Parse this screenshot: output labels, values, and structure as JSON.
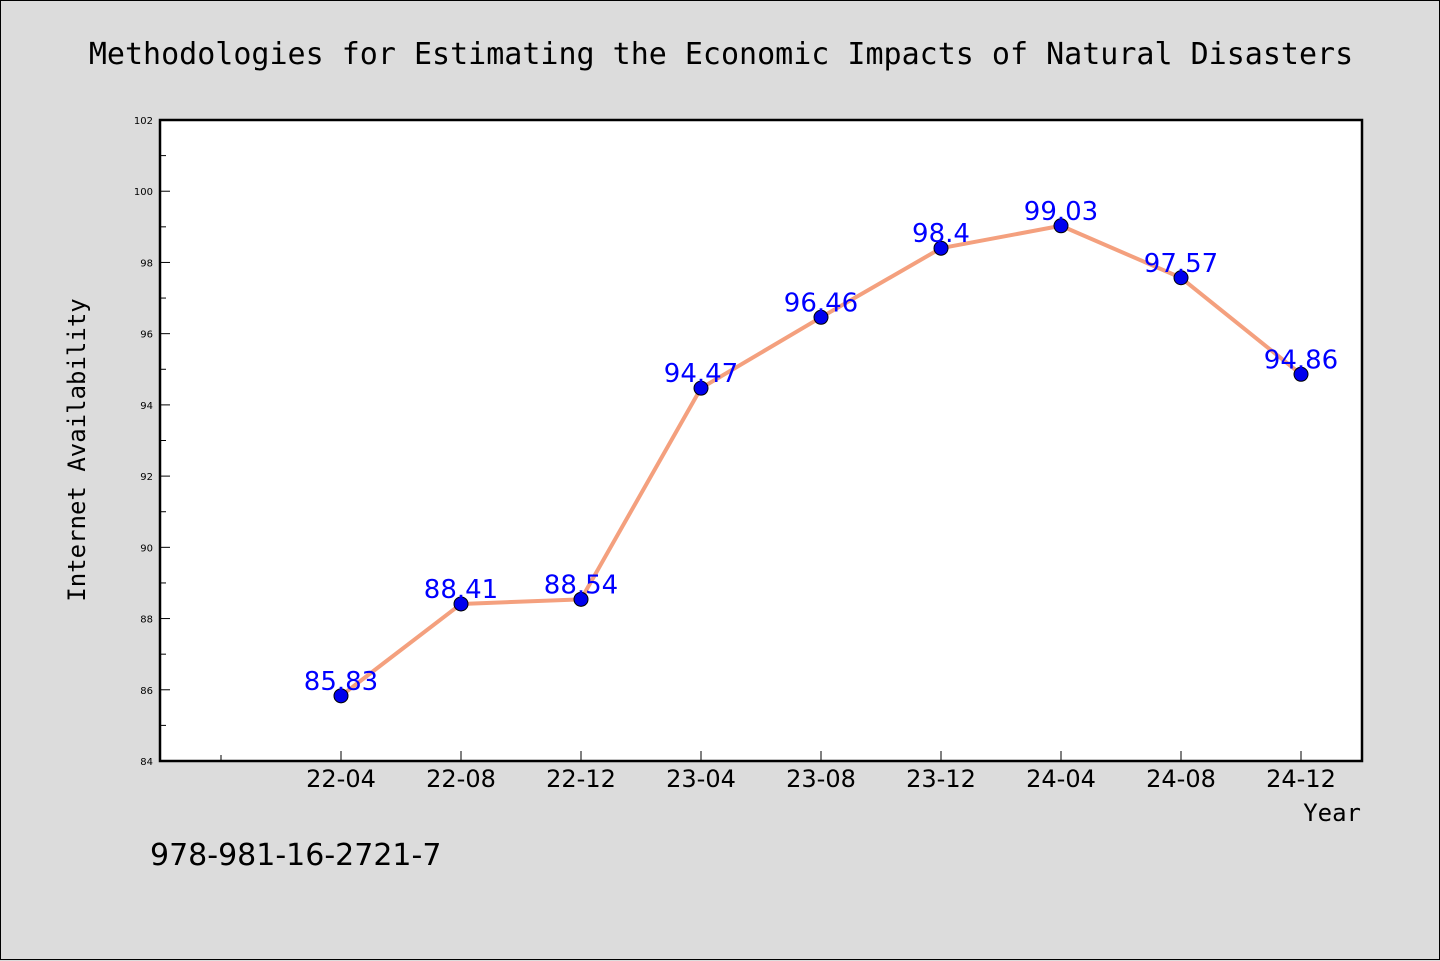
{
  "chart_data": {
    "type": "line",
    "title": "Methodologies for Estimating the Economic Impacts of Natural Disasters",
    "xlabel": "Year",
    "ylabel": "Internet Availability",
    "categories": [
      "22-04",
      "22-08",
      "22-12",
      "23-04",
      "23-08",
      "23-12",
      "24-04",
      "24-08",
      "24-12"
    ],
    "values": [
      85.83,
      88.41,
      88.54,
      94.47,
      96.46,
      98.4,
      99.03,
      97.57,
      94.86
    ],
    "value_labels": [
      "85.83",
      "88.41",
      "88.54",
      "94.47",
      "96.46",
      "98.4",
      "99.03",
      "97.57",
      "94.86"
    ],
    "ylim": [
      84,
      102
    ],
    "yticks": [
      "84",
      "86",
      "88",
      "90",
      "92",
      "94",
      "96",
      "98",
      "100",
      "102"
    ],
    "grid": false,
    "line_color": "#f4a07e",
    "marker_color": "#0000ee",
    "label_color": "#0000ff"
  },
  "footer": {
    "isbn": "978-981-16-2721-7"
  }
}
